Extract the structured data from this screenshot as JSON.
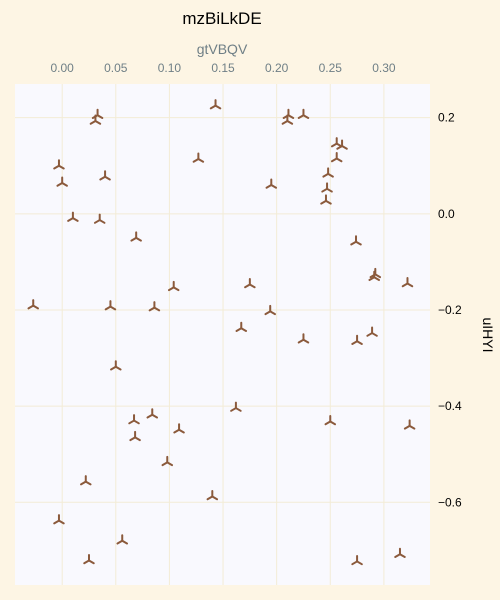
{
  "chart_data": {
    "type": "scatter",
    "title": "mzBiLkDE",
    "xlabel": "gtVBQV",
    "ylabel": "uIHYI",
    "x_ticks": [
      "0.00",
      "0.05",
      "0.10",
      "0.15",
      "0.20",
      "0.25",
      "0.30"
    ],
    "y_ticks": [
      "0.2",
      "0.0",
      "−0.2",
      "−0.4",
      "−0.6"
    ],
    "xlim": [
      -0.044,
      0.343
    ],
    "ylim": [
      -0.772,
      0.27
    ],
    "x_axis_position": "top",
    "y_axis_position": "right",
    "grid": true,
    "marker": "tri",
    "colors": {
      "page_background": "#fdf5e4",
      "plot_background": "#f9f9fe",
      "grid": "#f3ecd6",
      "marker": "#8b5a3c",
      "axis_label": "#6f7f86"
    },
    "series": [
      {
        "points": [
          [
            0.143,
            0.225
          ],
          [
            0.033,
            0.205
          ],
          [
            0.031,
            0.193
          ],
          [
            0.211,
            0.205
          ],
          [
            0.21,
            0.193
          ],
          [
            0.225,
            0.205
          ],
          [
            0.256,
            0.146
          ],
          [
            0.261,
            0.141
          ],
          [
            0.127,
            0.114
          ],
          [
            0.256,
            0.115
          ],
          [
            -0.003,
            0.1
          ],
          [
            0.04,
            0.077
          ],
          [
            0.248,
            0.083
          ],
          [
            0.0,
            0.064
          ],
          [
            0.195,
            0.06
          ],
          [
            0.247,
            0.052
          ],
          [
            0.246,
            0.027
          ],
          [
            0.01,
            -0.009
          ],
          [
            0.035,
            -0.013
          ],
          [
            0.069,
            -0.05
          ],
          [
            0.274,
            -0.058
          ],
          [
            0.292,
            -0.126
          ],
          [
            0.291,
            -0.132
          ],
          [
            0.322,
            -0.145
          ],
          [
            0.175,
            -0.147
          ],
          [
            0.104,
            -0.153
          ],
          [
            -0.027,
            -0.191
          ],
          [
            0.045,
            -0.193
          ],
          [
            0.086,
            -0.195
          ],
          [
            0.194,
            -0.203
          ],
          [
            0.167,
            -0.238
          ],
          [
            0.289,
            -0.248
          ],
          [
            0.225,
            -0.262
          ],
          [
            0.275,
            -0.265
          ],
          [
            0.05,
            -0.318
          ],
          [
            0.162,
            -0.404
          ],
          [
            0.084,
            -0.418
          ],
          [
            0.067,
            -0.43
          ],
          [
            0.109,
            -0.449
          ],
          [
            0.25,
            -0.432
          ],
          [
            0.324,
            -0.441
          ],
          [
            0.068,
            -0.465
          ],
          [
            0.098,
            -0.517
          ],
          [
            0.022,
            -0.557
          ],
          [
            0.14,
            -0.588
          ],
          [
            -0.003,
            -0.638
          ],
          [
            0.056,
            -0.68
          ],
          [
            0.315,
            -0.708
          ],
          [
            0.025,
            -0.721
          ],
          [
            0.275,
            -0.723
          ]
        ]
      }
    ]
  }
}
